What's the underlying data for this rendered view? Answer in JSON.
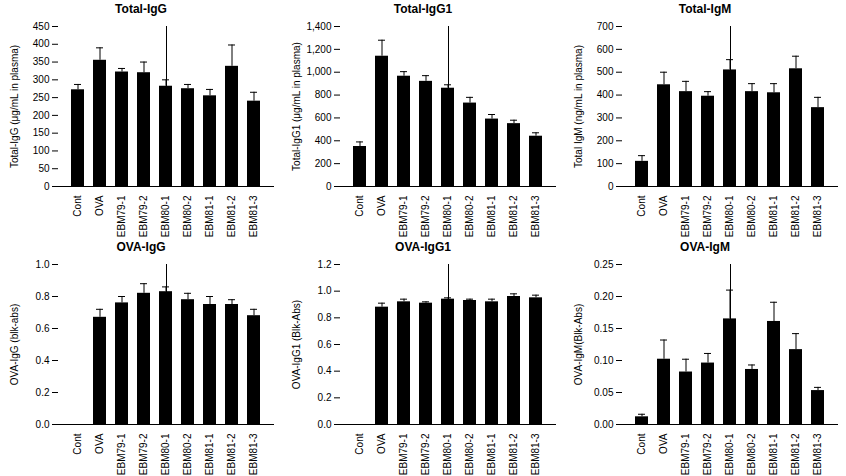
{
  "chart_data": [
    {
      "type": "bar",
      "title": "Total-IgG",
      "y_label": "Total-IgG (μg/mL in plasma)",
      "color": "#000000",
      "categories": [
        "Cont",
        "OVA",
        "EBM79-1",
        "EBM79-2",
        "EBM80-1",
        "EBM80-2",
        "EBM81-1",
        "EBM81-2",
        "EBM81-3"
      ],
      "values": [
        272,
        355,
        322,
        320,
        282,
        275,
        255,
        338,
        240
      ],
      "errors": [
        15,
        35,
        10,
        30,
        18,
        12,
        18,
        60,
        25
      ],
      "ylim": [
        0,
        450
      ],
      "yticks": [
        0,
        50,
        100,
        150,
        200,
        250,
        300,
        350,
        400,
        450
      ]
    },
    {
      "type": "bar",
      "title": "Total-IgG1",
      "y_label": "Total-IgG1 (μg/mL in plasma)",
      "color": "#000000",
      "categories": [
        "Cont",
        "OVA",
        "EBM79-1",
        "EBM79-2",
        "EBM80-1",
        "EBM80-2",
        "EBM81-1",
        "EBM81-2",
        "EBM81-3"
      ],
      "values": [
        350,
        1140,
        965,
        920,
        860,
        730,
        590,
        550,
        440
      ],
      "errors": [
        40,
        140,
        40,
        50,
        30,
        50,
        40,
        30,
        30
      ],
      "ylim": [
        0,
        1400
      ],
      "yticks": [
        0,
        200,
        400,
        600,
        800,
        {
          "value": 1000,
          "label": "1,000"
        },
        {
          "value": 1200,
          "label": "1,200"
        },
        {
          "value": 1400,
          "label": "1,400"
        }
      ]
    },
    {
      "type": "bar",
      "title": "Total-IgM",
      "y_label": "Total IgM (ng/mL in plasma)",
      "color": "#000000",
      "categories": [
        "Cont",
        "OVA",
        "EBM79-1",
        "EBM79-2",
        "EBM80-1",
        "EBM80-2",
        "EBM81-1",
        "EBM81-2",
        "EBM81-3"
      ],
      "values": [
        110,
        445,
        415,
        395,
        510,
        415,
        410,
        515,
        345
      ],
      "errors": [
        25,
        55,
        45,
        20,
        45,
        35,
        40,
        55,
        45
      ],
      "ylim": [
        0,
        700
      ],
      "yticks": [
        0,
        100,
        200,
        300,
        400,
        500,
        600,
        700
      ]
    },
    {
      "type": "bar",
      "title": "OVA-IgG",
      "y_label": "OVA-IgG (blk-abs)",
      "color": "#000000",
      "categories": [
        "Cont",
        "OVA",
        "EBM79-1",
        "EBM79-2",
        "EBM80-1",
        "EBM80-2",
        "EBM81-1",
        "EBM81-2",
        "EBM81-3"
      ],
      "values": [
        0,
        0.67,
        0.76,
        0.82,
        0.83,
        0.78,
        0.75,
        0.75,
        0.68
      ],
      "errors": [
        0,
        0.05,
        0.04,
        0.06,
        0.03,
        0.04,
        0.05,
        0.03,
        0.04
      ],
      "ylim": [
        0,
        1
      ],
      "yticks": [
        {
          "value": 0,
          "label": "0.0"
        },
        0.2,
        0.4,
        0.6,
        0.8,
        {
          "value": 1,
          "label": "1.0"
        }
      ]
    },
    {
      "type": "bar",
      "title": "OVA-IgG1",
      "y_label": "OVA-IgG1 (Blk-Abs)",
      "color": "#000000",
      "categories": [
        "Cont",
        "OVA",
        "EBM79-1",
        "EBM79-2",
        "EBM80-1",
        "EBM80-2",
        "EBM81-1",
        "EBM81-2",
        "EBM81-3"
      ],
      "values": [
        0,
        0.88,
        0.92,
        0.91,
        0.94,
        0.93,
        0.92,
        0.96,
        0.95
      ],
      "errors": [
        0,
        0.03,
        0.02,
        0.01,
        0.01,
        0.01,
        0.02,
        0.02,
        0.02
      ],
      "ylim": [
        0,
        1.2
      ],
      "yticks": [
        {
          "value": 0,
          "label": "0.0"
        },
        0.2,
        0.4,
        0.6,
        0.8,
        {
          "value": 1,
          "label": "1.0"
        },
        1.2
      ]
    },
    {
      "type": "bar",
      "title": "OVA-IgM",
      "y_label": "OVA-IgM(Blk-Abs)",
      "color": "#000000",
      "categories": [
        "Cont",
        "OVA",
        "EBM79-1",
        "EBM79-2",
        "EBM80-1",
        "EBM80-2",
        "EBM81-1",
        "EBM81-2",
        "EBM81-3"
      ],
      "values": [
        0.012,
        0.102,
        0.082,
        0.096,
        0.165,
        0.086,
        0.161,
        0.117,
        0.053
      ],
      "errors": [
        0.004,
        0.03,
        0.02,
        0.015,
        0.045,
        0.007,
        0.03,
        0.025,
        0.005
      ],
      "ylim": [
        0,
        0.25
      ],
      "yticks": [
        {
          "value": 0,
          "label": "0.00"
        },
        0.05,
        {
          "value": 0.1,
          "label": "0.10"
        },
        0.15,
        {
          "value": 0.2,
          "label": "0.20"
        },
        0.25
      ]
    }
  ]
}
